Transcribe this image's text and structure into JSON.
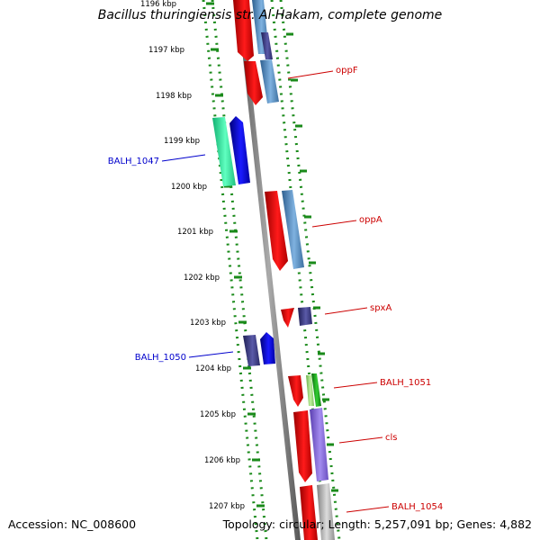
{
  "title": "Bacillus thuringiensis str. Al Hakam, complete genome",
  "footer": {
    "accession": "Accession: NC_008600",
    "topology": "Topology: circular; Length: 5,257,091 bp; Genes: 4,882"
  },
  "colors": {
    "reverse_red": "#ff0000",
    "forward_blue": "#0000ff",
    "steel_blue": "#5a94cc",
    "indigo": "#3d3d8a",
    "purple": "#8a6fd8",
    "seafoam": "#2bf0a3",
    "green": "#1aa51a",
    "light_green": "#9ae47a",
    "gray": "#b0b0b0",
    "ruler_dots": "#1a8a1a",
    "backbone": "#7d7d7d",
    "label_red": "#cc0000",
    "label_blue": "#0000cc"
  },
  "ruler": {
    "ticks": [
      "1196 kbp",
      "1197 kbp",
      "1198 kbp",
      "1199 kbp",
      "1200 kbp",
      "1201 kbp",
      "1202 kbp",
      "1203 kbp",
      "1204 kbp",
      "1205 kbp",
      "1206 kbp",
      "1207 kbp"
    ]
  },
  "gene_labels": [
    {
      "text": "oppF",
      "strand": "reverse"
    },
    {
      "text": "BALH_1047",
      "strand": "forward"
    },
    {
      "text": "oppA",
      "strand": "reverse"
    },
    {
      "text": "spxA",
      "strand": "reverse"
    },
    {
      "text": "BALH_1050",
      "strand": "forward"
    },
    {
      "text": "BALH_1051",
      "strand": "reverse"
    },
    {
      "text": "cls",
      "strand": "reverse"
    },
    {
      "text": "BALH_1054",
      "strand": "reverse"
    }
  ]
}
